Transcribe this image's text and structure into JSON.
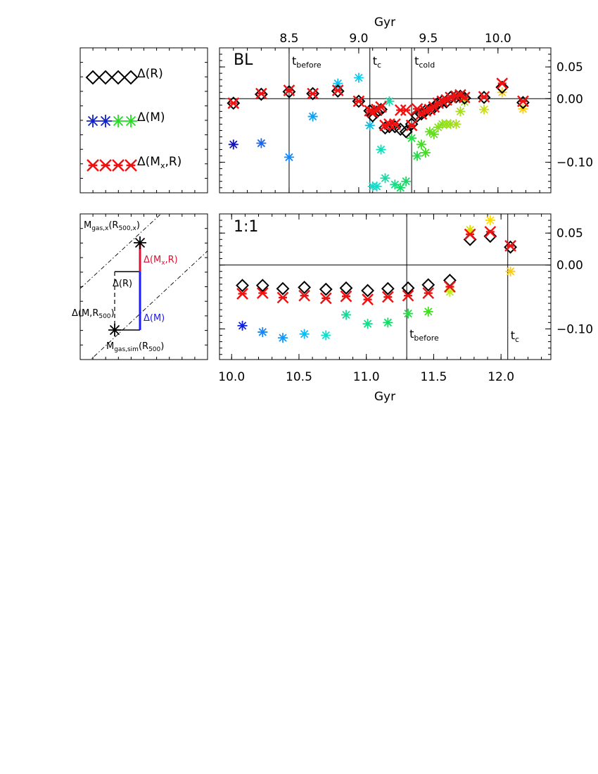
{
  "colors": {
    "axis": "#000000",
    "diamond": "#000000",
    "red": "#ee1111",
    "blue_line": "#1a1aff",
    "bar_red": "#dd1133",
    "legend_green": "#22dd22",
    "legend_blue": "#1122cc"
  },
  "legend": {
    "r_label": "Δ(R)",
    "m_label": "Δ(M)",
    "mxr_label": "Δ(Mx,R)"
  },
  "schematic": {
    "top_point": "Mgas,x(R500,x)",
    "bottom_point": "Mgas,sim(R500)",
    "dr": "Δ(R)",
    "dmx": "Δ(Mx,R)",
    "dm": "Δ(M)",
    "dmr": "Δ(M,R500)"
  },
  "chart_data": [
    {
      "type": "scatter",
      "panel_label": "BL",
      "top_axis": {
        "label": "Gyr",
        "ticks": [
          "8.5",
          "9.0",
          "9.5",
          "10.0"
        ],
        "tick_values": [
          8.5,
          9.0,
          9.5,
          10.0
        ],
        "xlim": [
          8.0,
          10.38
        ]
      },
      "y_axis": {
        "ticks": [
          "0.05",
          "0.00",
          "-0.10"
        ],
        "tick_values": [
          0.05,
          0.0,
          -0.1
        ],
        "ylim": [
          -0.148,
          0.08
        ]
      },
      "vlines": [
        {
          "x": 8.5,
          "label": "t",
          "sub": "before"
        },
        {
          "x": 9.08,
          "label": "t",
          "sub": "c"
        },
        {
          "x": 9.38,
          "label": "t",
          "sub": "cold"
        }
      ],
      "series": [
        {
          "name": "Δ(R)",
          "marker": "diamond",
          "color": "#000000",
          "x": [
            8.1,
            8.3,
            8.5,
            8.67,
            8.85,
            9.0,
            9.08,
            9.1,
            9.13,
            9.16,
            9.19,
            9.22,
            9.26,
            9.3,
            9.34,
            9.38,
            9.42,
            9.45,
            9.48,
            9.51,
            9.54,
            9.57,
            9.6,
            9.63,
            9.66,
            9.7,
            9.73,
            9.76,
            9.9,
            10.03,
            10.18
          ],
          "y": [
            -0.007,
            0.007,
            0.011,
            0.008,
            0.012,
            -0.004,
            -0.019,
            -0.027,
            -0.021,
            -0.017,
            -0.046,
            -0.044,
            -0.044,
            -0.048,
            -0.052,
            -0.04,
            -0.027,
            -0.024,
            -0.019,
            -0.017,
            -0.014,
            -0.007,
            -0.004,
            -0.005,
            0.002,
            0.003,
            0.004,
            0.001,
            0.002,
            0.018,
            -0.006
          ]
        },
        {
          "name": "Δ(Mx,R)",
          "marker": "cross",
          "color": "#ee1111",
          "x": [
            8.1,
            8.3,
            8.5,
            8.67,
            8.85,
            9.0,
            9.08,
            9.1,
            9.13,
            9.16,
            9.19,
            9.22,
            9.26,
            9.3,
            9.34,
            9.38,
            9.42,
            9.45,
            9.48,
            9.51,
            9.54,
            9.57,
            9.6,
            9.63,
            9.66,
            9.7,
            9.73,
            9.76,
            9.9,
            10.03,
            10.18
          ],
          "y": [
            -0.007,
            0.008,
            0.013,
            0.008,
            0.013,
            -0.004,
            -0.019,
            -0.021,
            -0.017,
            -0.013,
            -0.042,
            -0.04,
            -0.04,
            -0.018,
            -0.018,
            -0.042,
            -0.016,
            -0.024,
            -0.019,
            -0.017,
            -0.013,
            -0.007,
            -0.004,
            -0.002,
            0.002,
            0.004,
            0.006,
            0.002,
            0.003,
            0.024,
            -0.004
          ]
        },
        {
          "name": "Δ(M)",
          "marker": "asterisk",
          "color": "gradient",
          "x": [
            8.1,
            8.3,
            8.5,
            8.67,
            8.85,
            9.0,
            9.08,
            9.1,
            9.13,
            9.16,
            9.19,
            9.22,
            9.26,
            9.3,
            9.34,
            9.38,
            9.42,
            9.45,
            9.48,
            9.51,
            9.54,
            9.57,
            9.6,
            9.63,
            9.66,
            9.7,
            9.73,
            9.76,
            9.9,
            10.03,
            10.18
          ],
          "y": [
            -0.072,
            -0.07,
            -0.092,
            -0.028,
            0.024,
            0.033,
            -0.042,
            -0.138,
            -0.138,
            -0.08,
            -0.125,
            -0.004,
            -0.135,
            -0.14,
            -0.13,
            -0.062,
            -0.09,
            -0.072,
            -0.085,
            -0.052,
            -0.056,
            -0.045,
            -0.04,
            -0.04,
            -0.04,
            -0.04,
            -0.02,
            -0.005,
            -0.017,
            0.01,
            -0.016
          ],
          "colors": [
            "#1111cc",
            "#1166ff",
            "#1188ff",
            "#11a0f0",
            "#11c0ee",
            "#11ccee",
            "#11bbdd",
            "#11ddcc",
            "#11ddcc",
            "#11ddbb",
            "#11ddaa",
            "#11ddaa",
            "#11dd88",
            "#11dd66",
            "#11dd66",
            "#22dd44",
            "#22dd44",
            "#44dd22",
            "#44dd22",
            "#66dd22",
            "#66dd22",
            "#88dd22",
            "#88dd22",
            "#99dd22",
            "#99dd22",
            "#aadd22",
            "#aadd22",
            "#aadd22",
            "#ccdd11",
            "#ffcc00",
            "#ffcc00"
          ]
        }
      ]
    },
    {
      "type": "scatter",
      "panel_label": "1:1",
      "bottom_axis": {
        "label": "Gyr",
        "ticks": [
          "10.0",
          "10.5",
          "11.0",
          "11.5",
          "12.0"
        ],
        "tick_values": [
          10.0,
          10.5,
          11.0,
          11.5,
          12.0
        ],
        "xlim": [
          9.91,
          12.37
        ]
      },
      "y_axis": {
        "ticks": [
          "0.05",
          "0.00",
          "-0.10"
        ],
        "tick_values": [
          0.05,
          0.0,
          -0.1
        ],
        "ylim": [
          -0.148,
          0.08
        ]
      },
      "vlines": [
        {
          "x": 11.3,
          "label": "t",
          "sub": "before"
        },
        {
          "x": 12.05,
          "label": "t",
          "sub": "c"
        }
      ],
      "series": [
        {
          "name": "Δ(R)",
          "marker": "diamond",
          "color": "#000000",
          "x": [
            10.08,
            10.23,
            10.38,
            10.54,
            10.7,
            10.85,
            11.01,
            11.16,
            11.31,
            11.46,
            11.62,
            11.77,
            11.92,
            12.07
          ],
          "y": [
            -0.032,
            -0.032,
            -0.037,
            -0.035,
            -0.038,
            -0.036,
            -0.04,
            -0.037,
            -0.036,
            -0.031,
            -0.024,
            0.04,
            0.045,
            0.028
          ]
        },
        {
          "name": "Δ(Mx,R)",
          "marker": "cross",
          "color": "#ee1111",
          "x": [
            10.08,
            10.23,
            10.38,
            10.54,
            10.7,
            10.85,
            11.01,
            11.16,
            11.31,
            11.46,
            11.62,
            11.77,
            11.92,
            12.07
          ],
          "y": [
            -0.045,
            -0.044,
            -0.051,
            -0.048,
            -0.052,
            -0.049,
            -0.054,
            -0.05,
            -0.048,
            -0.044,
            -0.034,
            0.048,
            0.052,
            0.03
          ]
        },
        {
          "name": "Δ(M)",
          "marker": "asterisk",
          "color": "gradient",
          "x": [
            10.08,
            10.23,
            10.38,
            10.54,
            10.7,
            10.85,
            11.01,
            11.16,
            11.31,
            11.46,
            11.62,
            11.77,
            11.92,
            12.07
          ],
          "y": [
            -0.095,
            -0.105,
            -0.114,
            -0.108,
            -0.11,
            -0.078,
            -0.092,
            -0.09,
            -0.076,
            -0.073,
            -0.042,
            0.055,
            0.07,
            -0.01
          ],
          "colors": [
            "#1122dd",
            "#1188ff",
            "#1199ff",
            "#11bbee",
            "#11ddcc",
            "#11dd99",
            "#11dd88",
            "#11dd66",
            "#22dd44",
            "#44dd22",
            "#bbee11",
            "#dddd00",
            "#ffdd00",
            "#ffcc00"
          ]
        }
      ]
    }
  ]
}
